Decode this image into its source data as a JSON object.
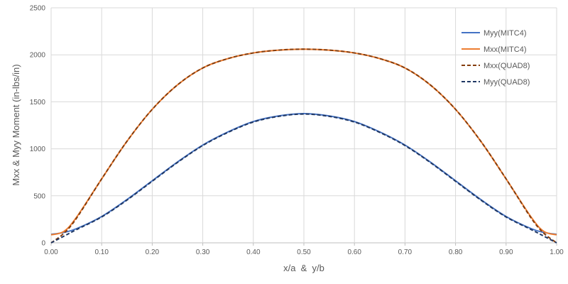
{
  "chart_data": {
    "type": "line",
    "xlabel": "x/a  &  y/b",
    "ylabel": "Mxx & Myy Moment (in-lbs/in)",
    "xlim": [
      0,
      1
    ],
    "ylim": [
      0,
      2500
    ],
    "x_ticks": [
      "0.00",
      "0.10",
      "0.20",
      "0.30",
      "0.40",
      "0.50",
      "0.60",
      "0.70",
      "0.80",
      "0.90",
      "1.00"
    ],
    "y_ticks": [
      "0",
      "500",
      "1000",
      "1500",
      "2000",
      "2500"
    ],
    "grid": "vertical and horizontal major gridlines",
    "legend_position": "top-right",
    "x": [
      0,
      0.025,
      0.05,
      0.1,
      0.15,
      0.2,
      0.25,
      0.3,
      0.35,
      0.4,
      0.45,
      0.5,
      0.55,
      0.6,
      0.65,
      0.7,
      0.75,
      0.8,
      0.85,
      0.9,
      0.95,
      0.975,
      1
    ],
    "series": [
      {
        "name": "Myy(MITC4)",
        "color": "#4472c4",
        "dash": "solid",
        "values": [
          90,
          110,
          150,
          280,
          460,
          660,
          860,
          1040,
          1180,
          1290,
          1350,
          1375,
          1350,
          1290,
          1180,
          1040,
          860,
          660,
          460,
          280,
          150,
          110,
          90
        ]
      },
      {
        "name": "Mxx(MITC4)",
        "color": "#ed7d31",
        "dash": "solid",
        "values": [
          85,
          120,
          270,
          680,
          1080,
          1420,
          1680,
          1860,
          1960,
          2020,
          2050,
          2060,
          2050,
          2020,
          1960,
          1860,
          1680,
          1420,
          1080,
          680,
          270,
          120,
          85
        ]
      },
      {
        "name": "Mxx(QUAD8)",
        "color": "#843c0c",
        "dash": "dashed",
        "values": [
          0,
          100,
          260,
          680,
          1080,
          1420,
          1680,
          1860,
          1960,
          2020,
          2050,
          2060,
          2050,
          2020,
          1960,
          1860,
          1680,
          1420,
          1080,
          680,
          260,
          100,
          0
        ]
      },
      {
        "name": "Myy(QUAD8)",
        "color": "#203864",
        "dash": "dashed",
        "values": [
          0,
          70,
          140,
          275,
          455,
          655,
          855,
          1035,
          1175,
          1285,
          1345,
          1370,
          1345,
          1285,
          1175,
          1035,
          855,
          655,
          455,
          275,
          140,
          70,
          0
        ]
      }
    ]
  }
}
